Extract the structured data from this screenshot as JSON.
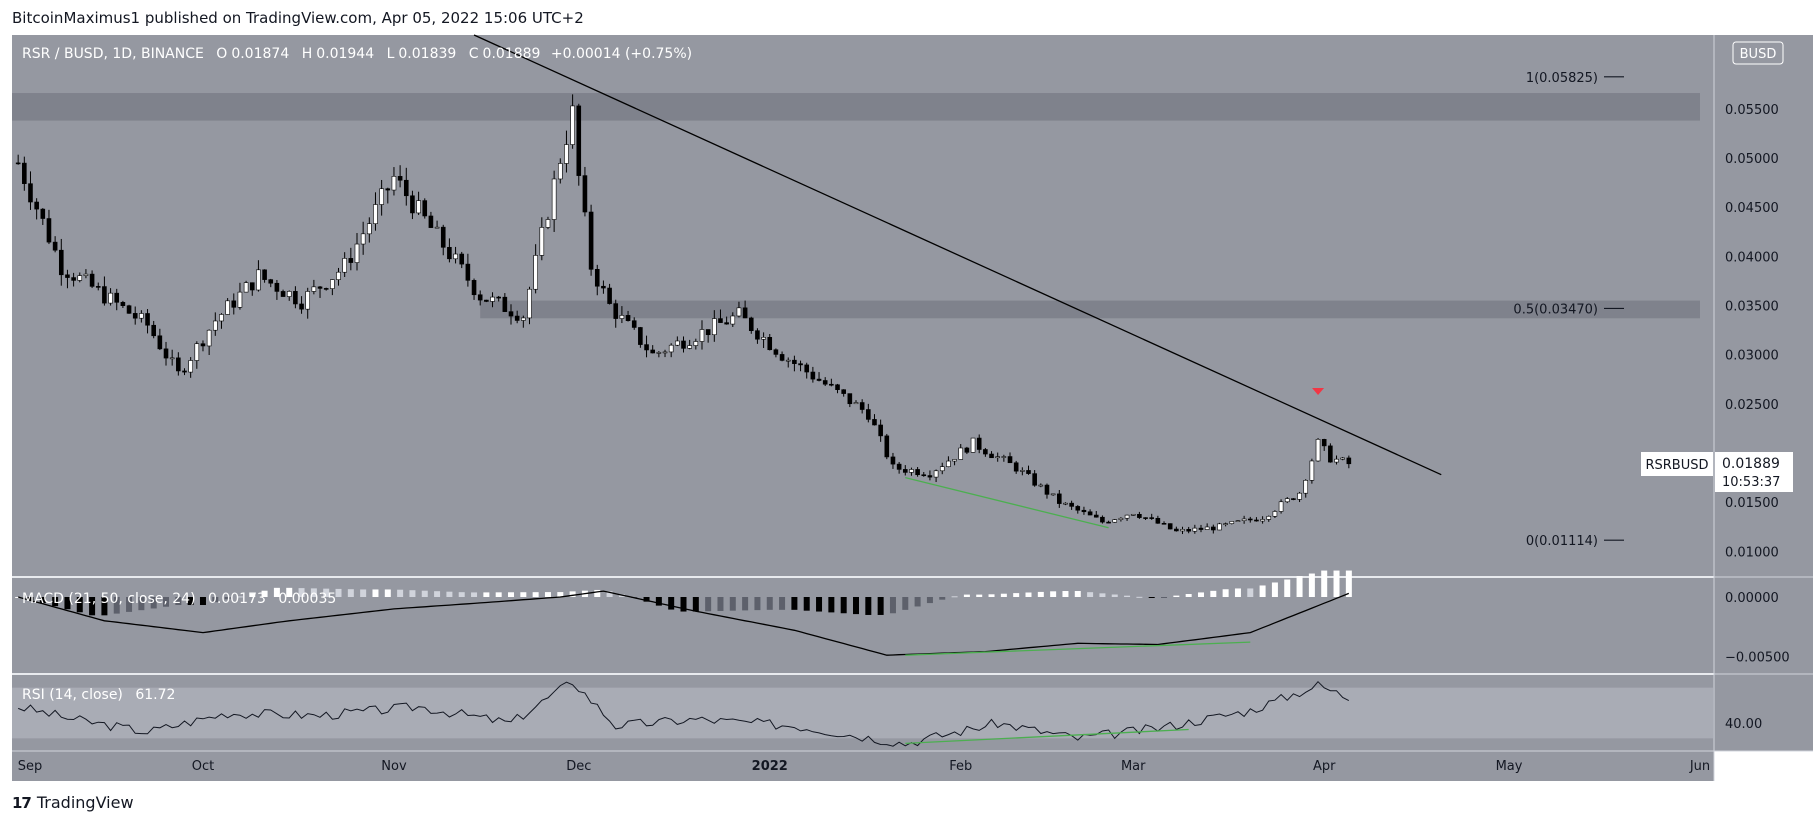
{
  "header": {
    "published": "BitcoinMaximus1 published on TradingView.com, Apr 05, 2022 15:06 UTC+2"
  },
  "footer": {
    "brand": "TradingView",
    "logo": "17"
  },
  "colors": {
    "pane_bg": "#9598a1",
    "band": "#787b86",
    "up": "#ffffff",
    "down": "#000000",
    "divergence": "#4caf50",
    "marker": "#f23645",
    "axis_bg": "#9598a1"
  },
  "chart_data": [
    {
      "type": "candlestick",
      "title": "RSR / BUSD, 1D, BINANCE",
      "ohlc": {
        "O": "0.01874",
        "H": "0.01944",
        "L": "0.01839",
        "C": "0.01889",
        "change": "+0.00014 (+0.75%)"
      },
      "ohlc_labels": {
        "O": "O",
        "H": "H",
        "L": "L",
        "C": "C"
      },
      "currency_badge": "BUSD",
      "symbol_tag": "RSRBUSD",
      "last_price": "0.01889",
      "countdown": "10:53:37",
      "x_ticks": [
        "Sep",
        "Oct",
        "Nov",
        "Dec",
        "2022",
        "Feb",
        "Mar",
        "Apr",
        "May",
        "Jun"
      ],
      "y_ticks": [
        "0.01000",
        "0.01500",
        "0.02500",
        "0.03000",
        "0.03500",
        "0.04000",
        "0.04500",
        "0.05000",
        "0.05500"
      ],
      "ylim": [
        0.0075,
        0.0625
      ],
      "fib_levels": [
        {
          "label": "1(0.05825)",
          "value": 0.05825
        },
        {
          "label": "0.5(0.03470)",
          "value": 0.0347
        },
        {
          "label": "0(0.01114)",
          "value": 0.01114
        }
      ],
      "resistance_zones": [
        {
          "low": 0.0538,
          "high": 0.0566,
          "from": "2021-08-31",
          "to": "2022-06-01"
        },
        {
          "low": 0.0337,
          "high": 0.0355,
          "from": "2021-11-15",
          "to": "2022-06-01"
        }
      ],
      "trendline": {
        "from": {
          "date": "2021-11-14",
          "value": 0.0625
        },
        "to": {
          "date": "2022-04-20",
          "value": 0.0178
        }
      },
      "divergence_line": {
        "from": {
          "date": "2022-01-23",
          "value": 0.0175
        },
        "to": {
          "date": "2022-02-25",
          "value": 0.0124
        }
      },
      "rejection_marker": {
        "date": "2022-03-31",
        "value": 0.0262
      },
      "series": [
        {
          "name": "RSR / BUSD",
          "dates": [
            "2021-09-01",
            "2021-09-08",
            "2021-09-15",
            "2021-09-22",
            "2021-09-27",
            "2021-10-03",
            "2021-10-10",
            "2021-10-17",
            "2021-10-24",
            "2021-11-01",
            "2021-11-08",
            "2021-11-15",
            "2021-11-22",
            "2021-11-28",
            "2021-11-30",
            "2021-12-01",
            "2021-12-03",
            "2021-12-06",
            "2021-12-13",
            "2021-12-20",
            "2021-12-27",
            "2022-01-03",
            "2022-01-10",
            "2022-01-17",
            "2022-01-21",
            "2022-01-27",
            "2022-02-03",
            "2022-02-10",
            "2022-02-17",
            "2022-02-24",
            "2022-03-01",
            "2022-03-08",
            "2022-03-15",
            "2022-03-22",
            "2022-03-28",
            "2022-03-31",
            "2022-04-02",
            "2022-04-05"
          ],
          "close": [
            0.0495,
            0.039,
            0.036,
            0.033,
            0.028,
            0.0335,
            0.038,
            0.0355,
            0.039,
            0.048,
            0.042,
            0.036,
            0.034,
            0.05,
            0.0545,
            0.048,
            0.039,
            0.035,
            0.03,
            0.032,
            0.034,
            0.03,
            0.027,
            0.024,
            0.0185,
            0.018,
            0.021,
            0.0185,
            0.015,
            0.013,
            0.014,
            0.012,
            0.0125,
            0.0135,
            0.016,
            0.021,
            0.0195,
            0.0189
          ]
        }
      ]
    },
    {
      "type": "line",
      "title": "MACD (21, 50, close, 24)",
      "values_text": [
        "0.00173",
        "0.00035"
      ],
      "y_ticks": [
        "0.00000",
        "−0.00500"
      ],
      "ylim": [
        -0.0064,
        0.0016
      ],
      "divergence_line": {
        "from": {
          "date": "2022-01-23",
          "value": -0.0049
        },
        "to": {
          "date": "2022-03-20",
          "value": -0.0038
        }
      },
      "series": [
        {
          "name": "MACD",
          "dates": [
            "2021-09-01",
            "2021-09-15",
            "2021-10-01",
            "2021-10-15",
            "2021-11-01",
            "2021-11-15",
            "2021-11-28",
            "2021-12-05",
            "2021-12-20",
            "2022-01-05",
            "2022-01-20",
            "2022-02-05",
            "2022-02-20",
            "2022-03-05",
            "2022-03-20",
            "2022-04-05"
          ],
          "values": [
            0.0,
            -0.002,
            -0.003,
            -0.002,
            -0.001,
            -0.0005,
            0.0,
            0.0005,
            -0.0012,
            -0.0028,
            -0.0049,
            -0.0046,
            -0.0039,
            -0.004,
            -0.003,
            0.0003
          ]
        }
      ]
    },
    {
      "type": "line",
      "title": "RSI (14, close)",
      "values_text": [
        "61.72"
      ],
      "y_ticks": [
        "40.00"
      ],
      "ylim": [
        20,
        80
      ],
      "band": [
        30,
        70
      ],
      "divergence_line": {
        "from": {
          "date": "2022-01-23",
          "value": 26
        },
        "to": {
          "date": "2022-03-10",
          "value": 37
        }
      },
      "series": [
        {
          "name": "RSI",
          "dates": [
            "2021-09-01",
            "2021-09-10",
            "2021-09-22",
            "2021-10-05",
            "2021-10-20",
            "2021-11-05",
            "2021-11-20",
            "2021-11-30",
            "2021-12-07",
            "2021-12-20",
            "2022-01-05",
            "2022-01-23",
            "2022-02-07",
            "2022-02-20",
            "2022-03-05",
            "2022-03-20",
            "2022-03-31",
            "2022-04-05"
          ],
          "values": [
            55,
            45,
            35,
            50,
            48,
            55,
            42,
            75,
            40,
            45,
            40,
            26,
            42,
            30,
            38,
            52,
            72,
            62
          ]
        }
      ]
    }
  ]
}
